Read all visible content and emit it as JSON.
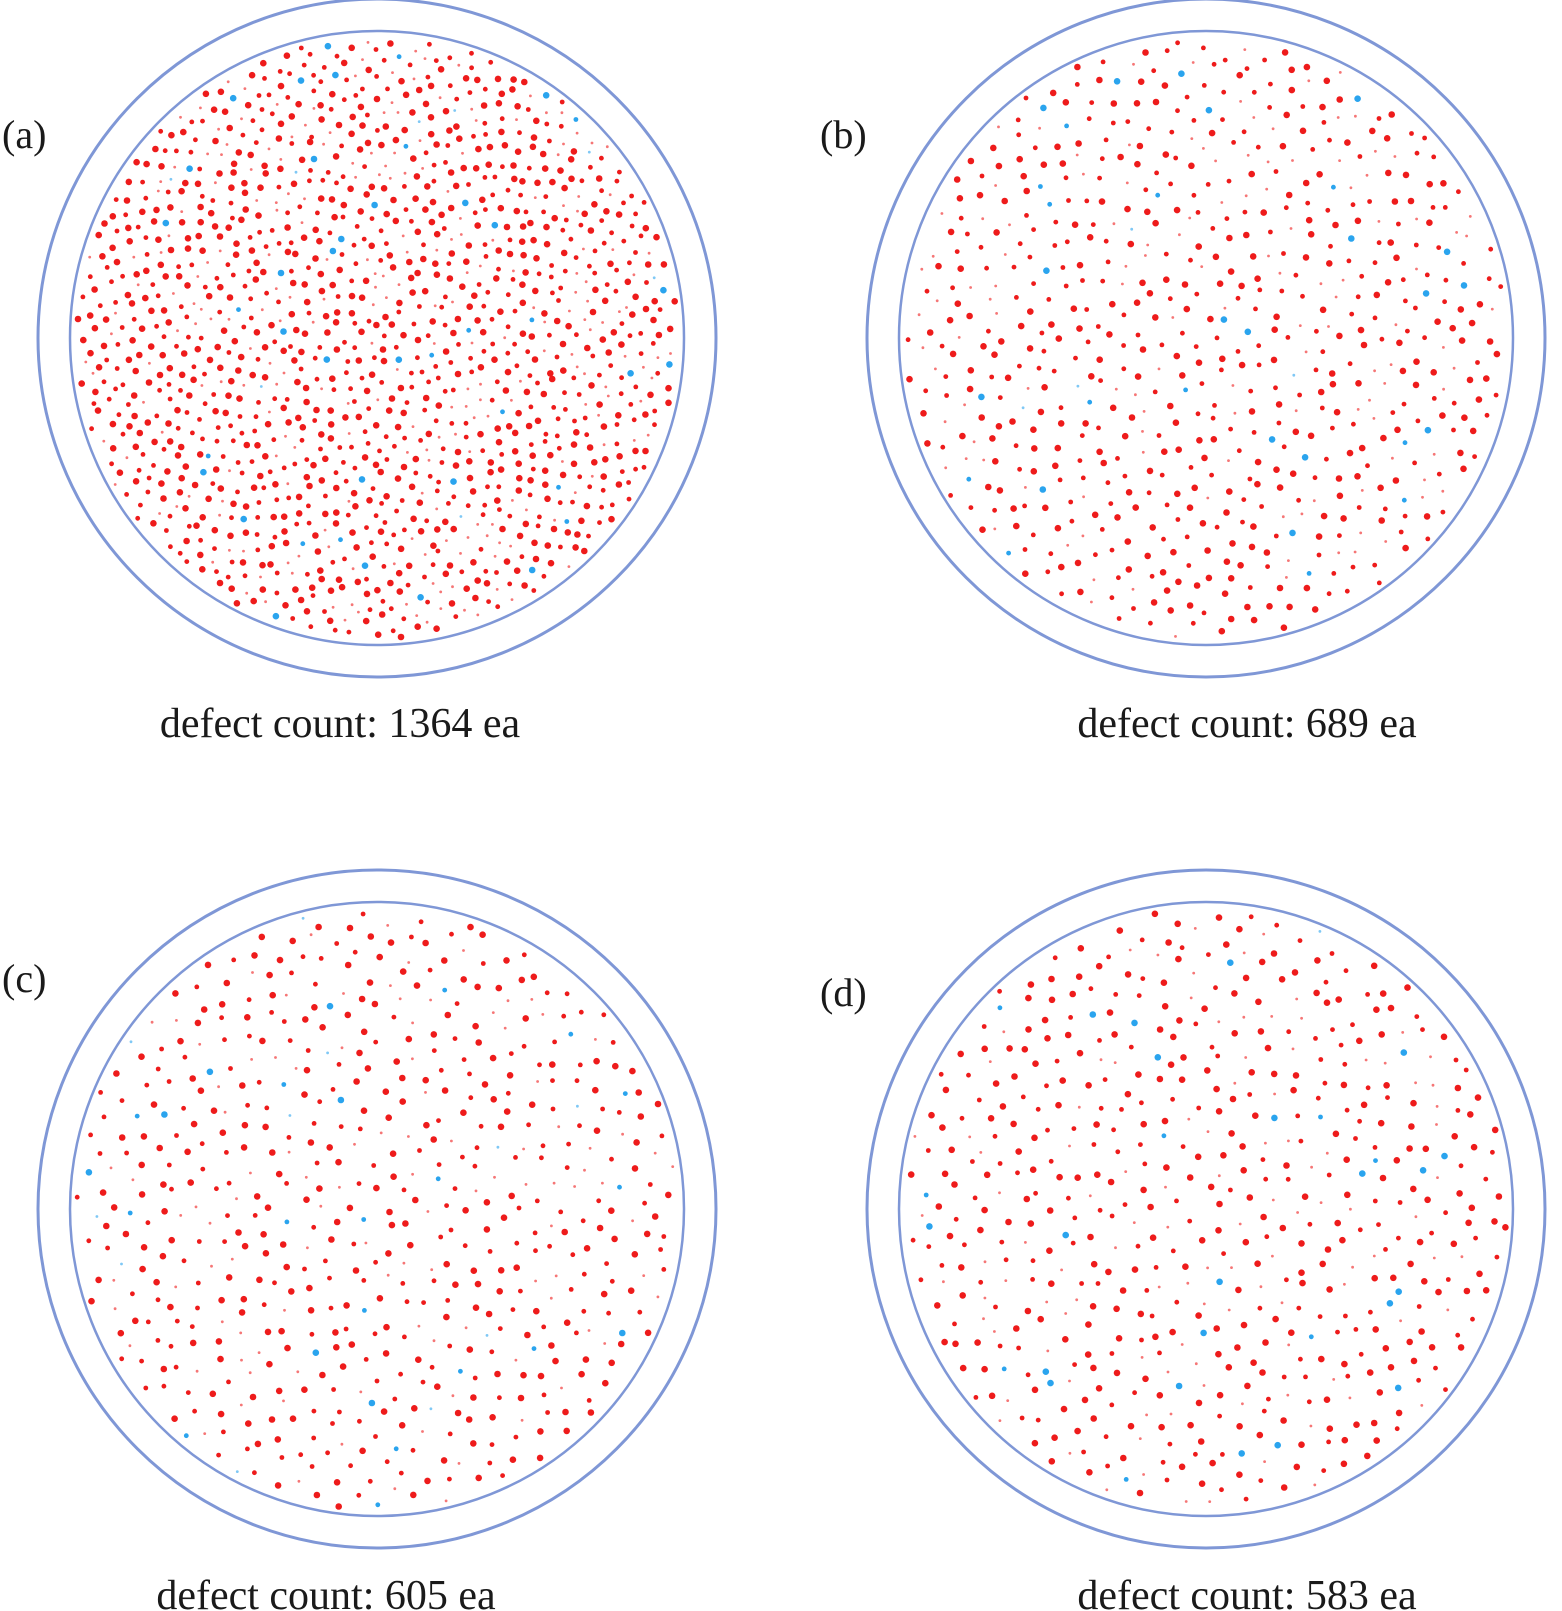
{
  "colors": {
    "wafer_ring": "#7f97d6",
    "defect_primary": "#ee1b1b",
    "defect_secondary": "#2aa4ee",
    "text": "#1a1a1a"
  },
  "panels": [
    {
      "label": "(a)",
      "caption": "defect count: 1364 ea",
      "defect_count": 1364,
      "secondary_fraction": 0.03
    },
    {
      "label": "(b)",
      "caption": "defect count: 689 ea",
      "defect_count": 689,
      "secondary_fraction": 0.045
    },
    {
      "label": "(c)",
      "caption": "defect count: 605 ea",
      "defect_count": 605,
      "secondary_fraction": 0.05
    },
    {
      "label": "(d)",
      "caption": "defect count: 583 ea",
      "defect_count": 583,
      "secondary_fraction": 0.05
    }
  ]
}
